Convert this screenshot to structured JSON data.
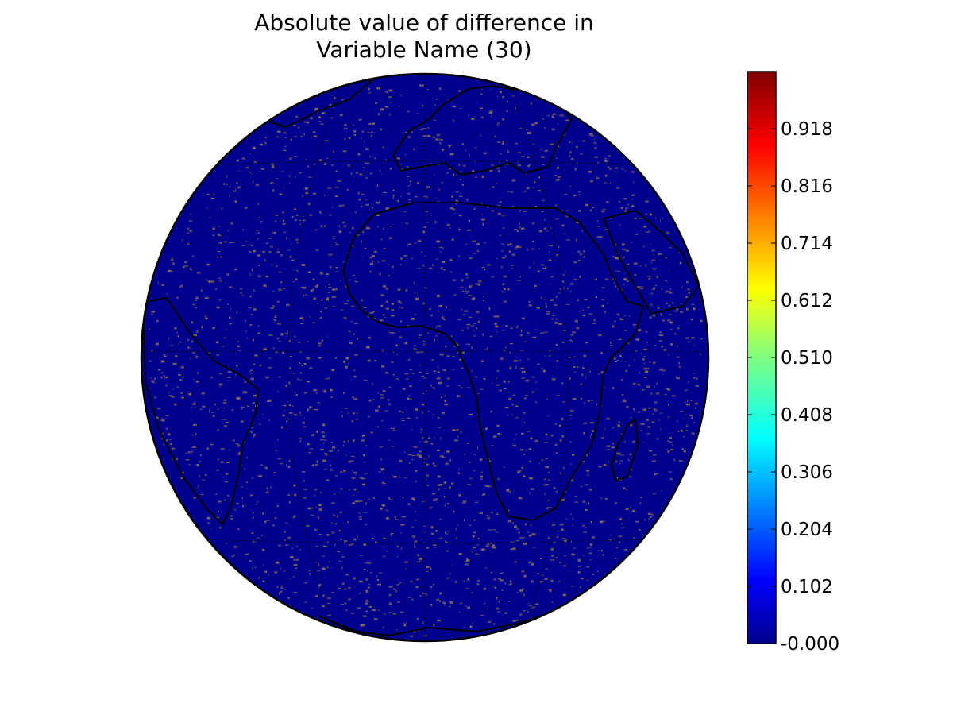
{
  "title": {
    "line1": "Absolute value of difference in",
    "line2": "Variable Name (30)"
  },
  "map": {
    "projection": "orthographic",
    "field_color": "#00008f",
    "speckle_color": "#8c6c5a",
    "coastline_color": "#000000",
    "graticule": "dotted"
  },
  "colorbar": {
    "colormap": "jet",
    "range": [
      0.0,
      1.02
    ],
    "ticks": [
      {
        "value": 0.0,
        "label": "-0.000"
      },
      {
        "value": 0.102,
        "label": "0.102"
      },
      {
        "value": 0.204,
        "label": "0.204"
      },
      {
        "value": 0.306,
        "label": "0.306"
      },
      {
        "value": 0.408,
        "label": "0.408"
      },
      {
        "value": 0.51,
        "label": "0.510"
      },
      {
        "value": 0.612,
        "label": "0.612"
      },
      {
        "value": 0.714,
        "label": "0.714"
      },
      {
        "value": 0.816,
        "label": "0.816"
      },
      {
        "value": 0.918,
        "label": "0.918"
      }
    ]
  }
}
